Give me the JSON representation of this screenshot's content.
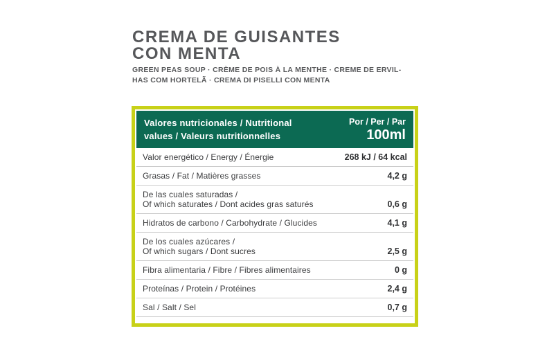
{
  "header": {
    "title": "CREMA DE GUISANTES\nCON MENTA",
    "subtitle": "GREEN PEAS SOUP · CRÈME DE POIS À LA MENTHE · CREME DE ERVIL-\nHAS COM HORTELÃ · CREMA DI PISELLI CON MENTA"
  },
  "colors": {
    "title_text": "#56575a",
    "table_border": "#c8d118",
    "table_header_bg": "#0c6a53",
    "table_header_text": "#ffffff",
    "row_divider": "#cccccc",
    "row_text": "#3a3b3d"
  },
  "nutrition_table": {
    "header_left": "Valores nutricionales / Nutritional\nvalues / Valeurs nutritionnelles",
    "header_right_line1": "Por / Per / Par",
    "header_right_line2": "100ml",
    "rows": [
      {
        "label": "Valor energético / Energy / Énergie",
        "value": "268 kJ / 64 kcal"
      },
      {
        "label": "Grasas / Fat / Matières grasses",
        "value": "4,2 g"
      },
      {
        "label": "De las cuales saturadas /\nOf which saturates / Dont acides gras saturés",
        "value": "0,6 g"
      },
      {
        "label": "Hidratos de carbono / Carbohydrate / Glucides",
        "value": "4,1 g"
      },
      {
        "label": "De los cuales azúcares /\nOf which sugars / Dont sucres",
        "value": "2,5 g"
      },
      {
        "label": "Fibra alimentaria / Fibre / Fibres alimentaires",
        "value": "0 g"
      },
      {
        "label": "Proteínas / Protein / Protéines",
        "value": "2,4 g"
      },
      {
        "label": "Sal / Salt / Sel",
        "value": "0,7 g"
      }
    ]
  }
}
